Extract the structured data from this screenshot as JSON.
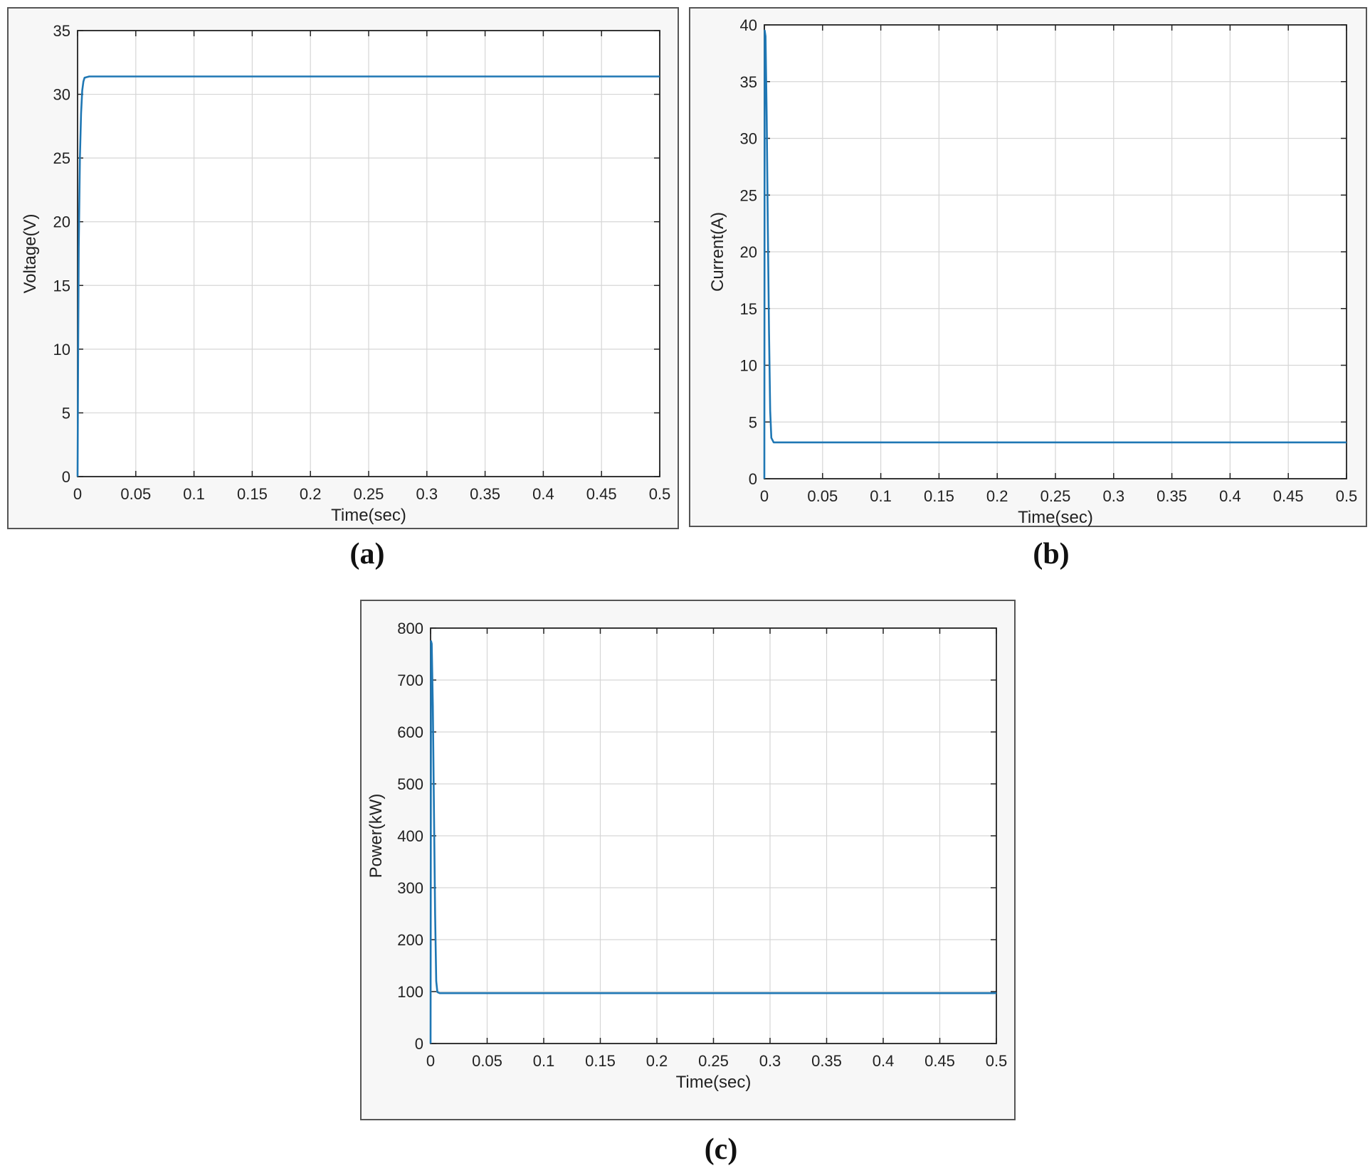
{
  "chart_data": [
    {
      "type": "line",
      "panel": "(a)",
      "xlabel": "Time(sec)",
      "ylabel": "Voltage(V)",
      "xlim": [
        0,
        0.5
      ],
      "ylim": [
        0,
        35
      ],
      "x_ticks": [
        0,
        0.05,
        0.1,
        0.15,
        0.2,
        0.25,
        0.3,
        0.35,
        0.4,
        0.45,
        0.5
      ],
      "y_ticks": [
        0,
        5,
        10,
        15,
        20,
        25,
        30,
        35
      ],
      "grid": true,
      "line_color": "#1f77b4",
      "series": [
        {
          "x": [
            0,
            0.0005,
            0.001,
            0.002,
            0.003,
            0.004,
            0.005,
            0.006,
            0.01,
            0.1,
            0.2,
            0.3,
            0.4,
            0.5
          ],
          "y": [
            0,
            10,
            18,
            25,
            28.5,
            30.3,
            31,
            31.3,
            31.4,
            31.4,
            31.4,
            31.4,
            31.4,
            31.4
          ]
        }
      ]
    },
    {
      "type": "line",
      "panel": "(b)",
      "xlabel": "Time(sec)",
      "ylabel": "Current(A)",
      "xlim": [
        0,
        0.5
      ],
      "ylim": [
        0,
        40
      ],
      "x_ticks": [
        0,
        0.05,
        0.1,
        0.15,
        0.2,
        0.25,
        0.3,
        0.35,
        0.4,
        0.45,
        0.5
      ],
      "y_ticks": [
        0,
        5,
        10,
        15,
        20,
        25,
        30,
        35,
        40
      ],
      "grid": true,
      "line_color": "#1f77b4",
      "series": [
        {
          "x": [
            0,
            0.0003,
            0.001,
            0.002,
            0.003,
            0.004,
            0.005,
            0.006,
            0.008,
            0.1,
            0.2,
            0.3,
            0.4,
            0.5
          ],
          "y": [
            0,
            39.5,
            39,
            32,
            22,
            13,
            6,
            3.6,
            3.2,
            3.2,
            3.2,
            3.2,
            3.2,
            3.2
          ]
        }
      ]
    },
    {
      "type": "line",
      "panel": "(c)",
      "xlabel": "Time(sec)",
      "ylabel": "Power(kW)",
      "xlim": [
        0,
        0.5
      ],
      "ylim": [
        0,
        800
      ],
      "x_ticks": [
        0,
        0.05,
        0.1,
        0.15,
        0.2,
        0.25,
        0.3,
        0.35,
        0.4,
        0.45,
        0.5
      ],
      "y_ticks": [
        0,
        100,
        200,
        300,
        400,
        500,
        600,
        700,
        800
      ],
      "grid": true,
      "line_color": "#1f77b4",
      "series": [
        {
          "x": [
            0,
            0.0004,
            0.001,
            0.002,
            0.003,
            0.004,
            0.005,
            0.006,
            0.008,
            0.1,
            0.2,
            0.3,
            0.4,
            0.5
          ],
          "y": [
            0,
            775,
            770,
            650,
            450,
            250,
            120,
            99,
            97,
            97,
            97,
            97,
            97,
            97
          ]
        }
      ]
    }
  ]
}
